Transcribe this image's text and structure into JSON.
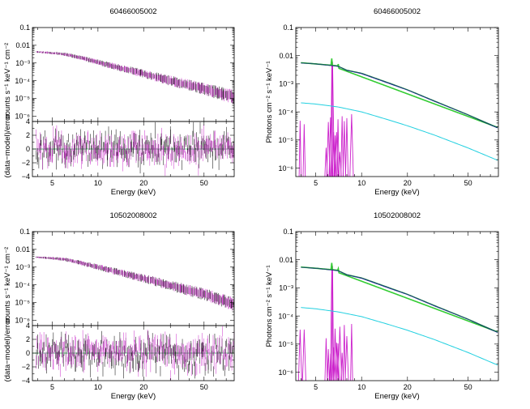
{
  "figure": {
    "obs_ids": [
      "60466005002",
      "10502008002"
    ]
  },
  "chart_data": [
    {
      "type": "scatter",
      "panel": "counts-spectrum",
      "title": "60466005002",
      "xlabel": "Energy (keV)",
      "ylabel": "counts s⁻¹ keV⁻¹ cm⁻²",
      "xlim": [
        3.7,
        79
      ],
      "ylim": [
        5e-07,
        0.1
      ],
      "xscale": "log",
      "yscale": "log",
      "x_ticks": [
        "5",
        "10",
        "20",
        "50"
      ],
      "y_ticks": [
        "0.1",
        "0.01",
        "10⁻³",
        "10⁻⁴",
        "10⁻⁵",
        "10⁻⁶"
      ],
      "series": [
        {
          "name": "data (black)",
          "color": "#000000",
          "x": [
            4,
            6,
            8,
            10,
            15,
            20,
            30,
            50,
            78
          ],
          "y": [
            0.0042,
            0.0032,
            0.0018,
            0.0011,
            0.00045,
            0.00025,
            0.0001,
            3.5e-05,
            1.2e-05
          ]
        },
        {
          "name": "data (magenta)",
          "color": "#cc33cc",
          "x": [
            4,
            6,
            8,
            10,
            15,
            20,
            30,
            50,
            78
          ],
          "y": [
            0.0042,
            0.0032,
            0.0018,
            0.0011,
            0.00045,
            0.00025,
            0.0001,
            3.5e-05,
            1.2e-05
          ]
        }
      ]
    },
    {
      "type": "scatter",
      "panel": "residuals",
      "xlabel": "Energy (keV)",
      "ylabel": "(data−model)/error",
      "xlim": [
        3.7,
        79
      ],
      "ylim": [
        -4,
        4
      ],
      "xscale": "log",
      "x_ticks": [
        "5",
        "10",
        "20",
        "50"
      ],
      "y_ticks": [
        "4",
        "2",
        "0",
        "−2",
        "−4"
      ],
      "series": [
        {
          "name": "residuals (black)",
          "color": "#000000",
          "mean": 0
        },
        {
          "name": "residuals (magenta)",
          "color": "#cc33cc",
          "mean": 0
        }
      ]
    },
    {
      "type": "line",
      "panel": "unfolded-model",
      "title": "60466005002",
      "xlabel": "Energy (keV)",
      "ylabel": "Photons cm⁻² s⁻¹ keV⁻¹",
      "xlim": [
        3.7,
        79
      ],
      "ylim": [
        5e-07,
        0.1
      ],
      "xscale": "log",
      "yscale": "log",
      "x_ticks": [
        "5",
        "10",
        "20",
        "50"
      ],
      "y_ticks": [
        "0.1",
        "0.01",
        "10⁻³",
        "10⁻⁴",
        "10⁻⁵",
        "10⁻⁶"
      ],
      "series": [
        {
          "name": "total model",
          "color": "#1a7a4a",
          "x": [
            4,
            5,
            7,
            8,
            10,
            15,
            20,
            30,
            50,
            78
          ],
          "y": [
            0.0056,
            0.0052,
            0.0043,
            0.0031,
            0.0024,
            0.0011,
            0.00062,
            0.00025,
            8e-05,
            2.8e-05
          ]
        },
        {
          "name": "continuum",
          "color": "#000088",
          "x": [
            4,
            5,
            7,
            8,
            10,
            15,
            20,
            30,
            50,
            78
          ],
          "y": [
            0.0055,
            0.0051,
            0.0042,
            0.003,
            0.0023,
            0.00105,
            0.0006,
            0.00024,
            7.8e-05,
            2.7e-05
          ]
        },
        {
          "name": "soft component",
          "color": "#22d0e0",
          "x": [
            4,
            5,
            7,
            10,
            15,
            20,
            30,
            50,
            78
          ],
          "y": [
            0.00021,
            0.00019,
            0.00015,
            0.0001,
            5.2e-05,
            3.2e-05,
            1.5e-05,
            5.2e-06,
            1.9e-06
          ]
        },
        {
          "name": "line emission",
          "color": "#cc22cc",
          "x": [
            6.4,
            6.7,
            7.0
          ],
          "y": [
            0.006,
            0.0001,
            4e-05
          ]
        }
      ]
    },
    {
      "type": "scatter",
      "panel": "counts-spectrum",
      "title": "10502008002",
      "xlabel": "Energy (keV)",
      "ylabel": "counts s⁻¹ keV⁻¹ cm⁻²",
      "xlim": [
        3.7,
        79
      ],
      "ylim": [
        5e-07,
        0.1
      ],
      "xscale": "log",
      "yscale": "log",
      "x_ticks": [
        "5",
        "10",
        "20",
        "50"
      ],
      "y_ticks": [
        "0.1",
        "0.01",
        "10⁻³",
        "10⁻⁴",
        "10⁻⁵",
        "10⁻⁶"
      ],
      "series": [
        {
          "name": "data (black)",
          "color": "#000000",
          "x": [
            4,
            6,
            8,
            10,
            15,
            20,
            30,
            50,
            75
          ],
          "y": [
            0.0036,
            0.0028,
            0.0016,
            0.001,
            0.00042,
            0.00023,
            9e-05,
            3e-05,
            9e-06
          ]
        },
        {
          "name": "data (magenta)",
          "color": "#cc33cc",
          "x": [
            4,
            6,
            8,
            10,
            15,
            20,
            30,
            50,
            75
          ],
          "y": [
            0.0036,
            0.0028,
            0.0016,
            0.001,
            0.00042,
            0.00023,
            9e-05,
            3e-05,
            9e-06
          ]
        }
      ]
    },
    {
      "type": "scatter",
      "panel": "residuals",
      "xlabel": "Energy (keV)",
      "ylabel": "(data−model)/error",
      "xlim": [
        3.7,
        79
      ],
      "ylim": [
        -4,
        4
      ],
      "xscale": "log",
      "x_ticks": [
        "5",
        "10",
        "20",
        "50"
      ],
      "y_ticks": [
        "4",
        "2",
        "0",
        "−2",
        "−4"
      ],
      "series": [
        {
          "name": "residuals (black)",
          "color": "#000000",
          "mean": 0
        },
        {
          "name": "residuals (magenta)",
          "color": "#cc33cc",
          "mean": 0
        }
      ]
    },
    {
      "type": "line",
      "panel": "unfolded-model",
      "title": "10502008002",
      "xlabel": "Energy (keV)",
      "ylabel": "Photons cm⁻² s⁻¹ keV⁻¹",
      "xlim": [
        3.7,
        79
      ],
      "ylim": [
        5e-07,
        0.1
      ],
      "xscale": "log",
      "yscale": "log",
      "x_ticks": [
        "5",
        "10",
        "20",
        "50"
      ],
      "y_ticks": [
        "0.1",
        "0.01",
        "10⁻³",
        "10⁻⁴",
        "10⁻⁵",
        "10⁻⁶"
      ],
      "series": [
        {
          "name": "total model",
          "color": "#1a7a4a",
          "x": [
            4,
            5,
            7,
            8,
            10,
            15,
            20,
            30,
            50,
            78
          ],
          "y": [
            0.0055,
            0.0051,
            0.0042,
            0.003,
            0.0023,
            0.00105,
            0.0006,
            0.00024,
            7.8e-05,
            2.7e-05
          ]
        },
        {
          "name": "continuum",
          "color": "#000088",
          "x": [
            4,
            5,
            7,
            8,
            10,
            15,
            20,
            30,
            50,
            78
          ],
          "y": [
            0.0054,
            0.005,
            0.0041,
            0.0029,
            0.0022,
            0.001,
            0.00058,
            0.00023,
            7.6e-05,
            2.6e-05
          ]
        },
        {
          "name": "soft component",
          "color": "#22d0e0",
          "x": [
            4,
            5,
            7,
            10,
            15,
            20,
            30,
            50,
            78
          ],
          "y": [
            0.0002,
            0.00018,
            0.00014,
            9.5e-05,
            5e-05,
            3.1e-05,
            1.45e-05,
            5e-06,
            1.8e-06
          ]
        },
        {
          "name": "line emission",
          "color": "#cc22cc",
          "x": [
            6.4,
            6.7,
            7.0
          ],
          "y": [
            0.006,
            0.0001,
            4e-05
          ]
        }
      ]
    }
  ]
}
